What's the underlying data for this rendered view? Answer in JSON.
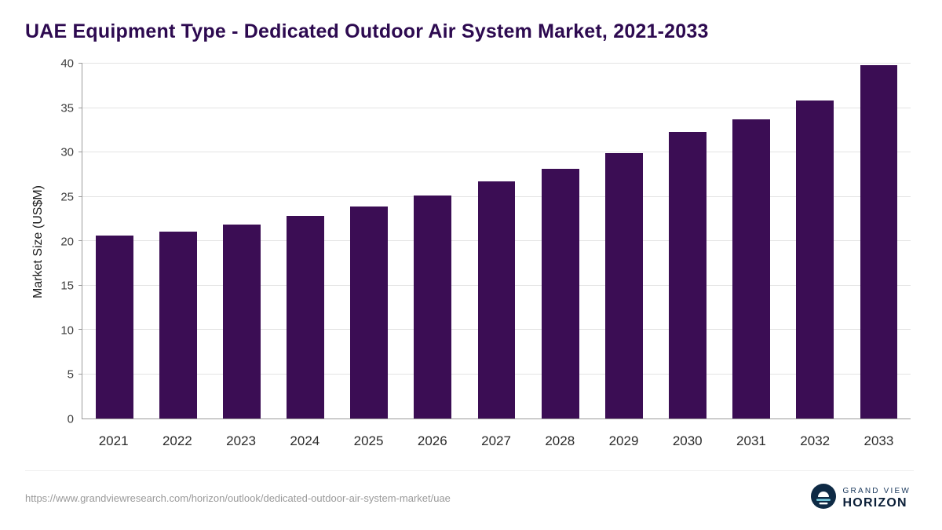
{
  "title": "UAE Equipment Type - Dedicated Outdoor Air System Market, 2021-2033",
  "source_url": "https://www.grandviewresearch.com/horizon/outlook/dedicated-outdoor-air-system-market/uae",
  "logo": {
    "line1": "GRAND VIEW",
    "line2": "HORIZON"
  },
  "colors": {
    "title": "#2d0a50",
    "bar": "#3b0d54",
    "grid": "#e4e4e4",
    "axis": "#9b9b9b",
    "source_text": "#9a9a9a",
    "logo_navy": "#0e2a45",
    "logo_cyan": "#7fd6e8"
  },
  "chart_data": {
    "type": "bar",
    "title": "UAE Equipment Type - Dedicated Outdoor Air System Market, 2021-2033",
    "categories": [
      "2021",
      "2022",
      "2023",
      "2024",
      "2025",
      "2026",
      "2027",
      "2028",
      "2029",
      "2030",
      "2031",
      "2032",
      "2033"
    ],
    "values": [
      20.6,
      21.1,
      21.9,
      22.8,
      23.9,
      25.1,
      26.7,
      28.1,
      29.9,
      32.3,
      33.7,
      35.8,
      39.8
    ],
    "xlabel": "",
    "ylabel": "Market Size (US$M)",
    "ylim": [
      0,
      40
    ],
    "yticks": [
      0,
      5,
      10,
      15,
      20,
      25,
      30,
      35,
      40
    ],
    "grid": "horizontal",
    "legend": "none",
    "bar_color": "#3b0d54"
  }
}
